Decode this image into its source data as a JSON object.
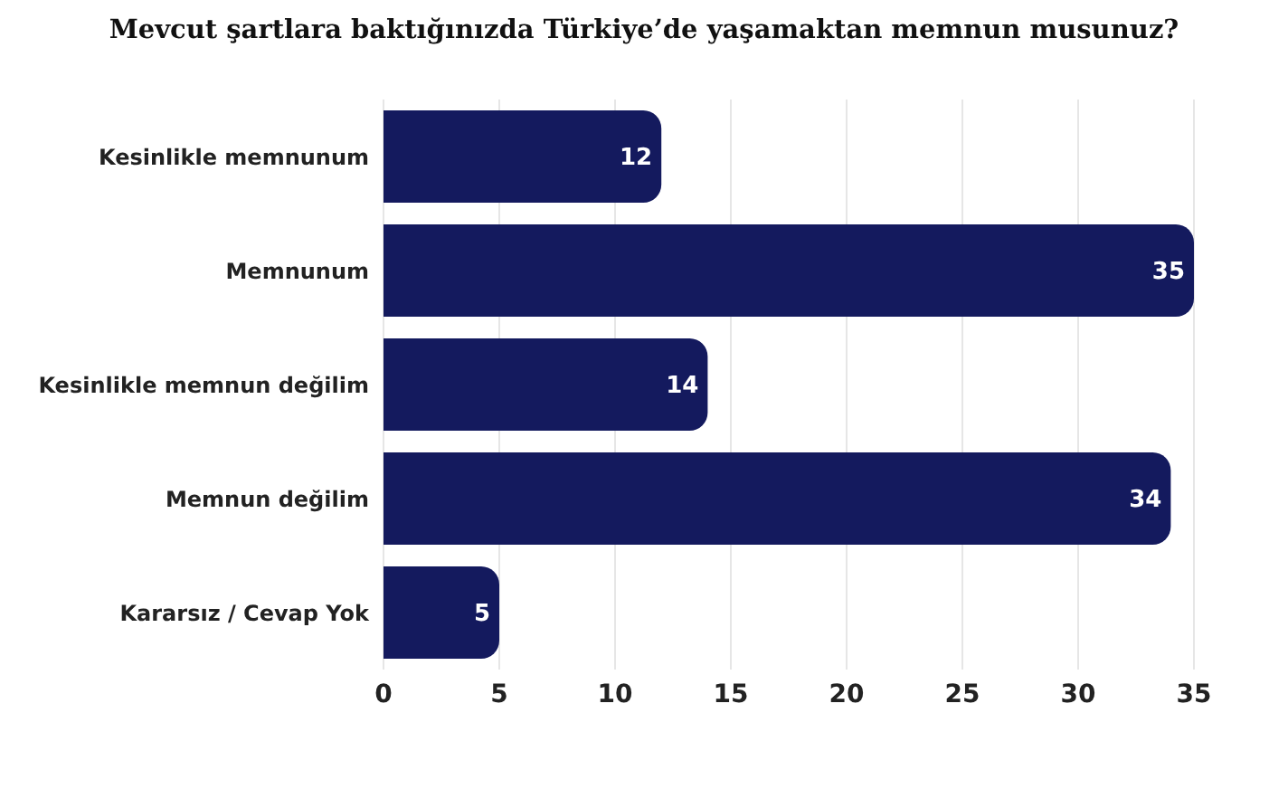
{
  "chart_data": {
    "type": "bar",
    "orientation": "horizontal",
    "title": "Mevcut şartlara baktığınızda Türkiye’de yaşamaktan memnun musunuz?",
    "categories": [
      "Kesinlikle memnunum",
      "Memnunum",
      "Kesinlikle memnun değilim",
      "Memnun değilim",
      "Kararsız / Cevap Yok"
    ],
    "values": [
      12,
      35,
      14,
      34,
      5
    ],
    "color": "#141a5e",
    "xlim": [
      0,
      35
    ],
    "xticks": [
      0,
      5,
      10,
      15,
      20,
      25,
      30,
      35
    ],
    "grid": "x",
    "data_labels": true
  }
}
